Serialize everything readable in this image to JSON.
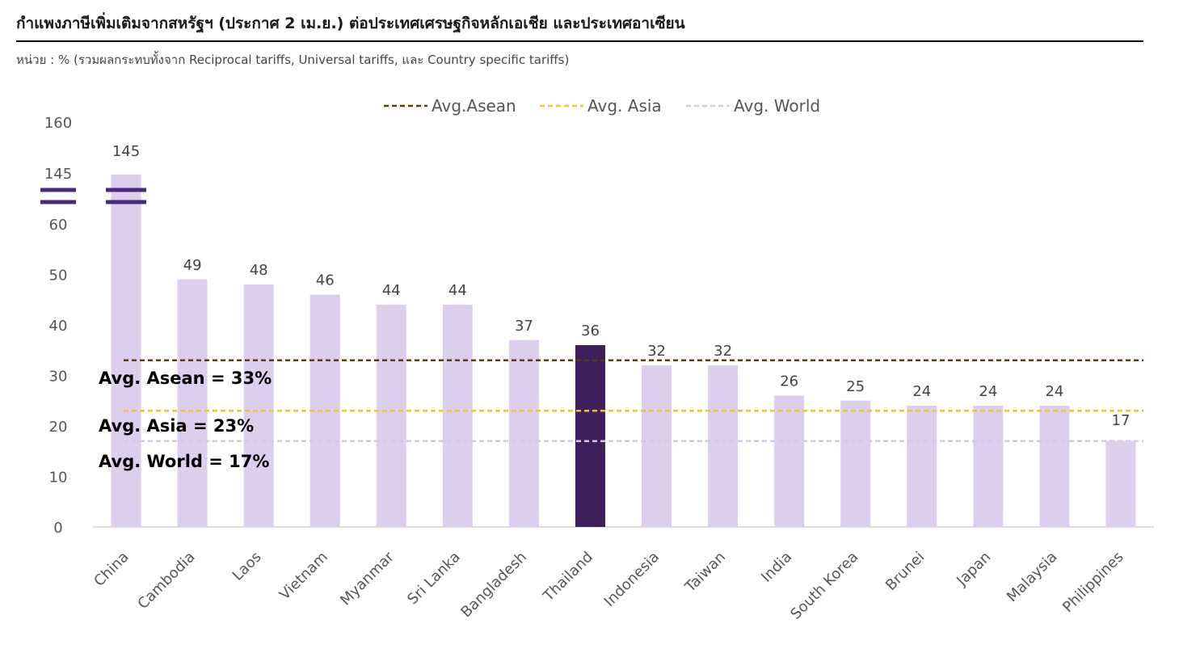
{
  "title": "กำแพงภาษีเพิ่มเติมจากสหรัฐฯ (ประกาศ 2 เม.ย.) ต่อประเทศเศรษฐกิจหลักเอเชีย และประเทศอาเซียน",
  "subtitle": "หน่วย : % (รวมผลกระทบทั้งจาก Reciprocal tariffs, Universal tariffs, และ Country specific tariffs)",
  "chart_data": {
    "type": "bar",
    "categories": [
      "China",
      "Cambodia",
      "Laos",
      "Vietnam",
      "Myanmar",
      "Sri Lanka",
      "Bangladesh",
      "Thailand",
      "Indonesia",
      "Taiwan",
      "India",
      "South Korea",
      "Brunei",
      "Japan",
      "Malaysia",
      "Philippines"
    ],
    "values": [
      145,
      49,
      48,
      46,
      44,
      44,
      37,
      36,
      32,
      32,
      26,
      25,
      24,
      24,
      24,
      17
    ],
    "ytick_labels": [
      "0",
      "10",
      "20",
      "30",
      "40",
      "50",
      "60",
      "145",
      "160"
    ],
    "axis_break": {
      "from": 60,
      "to": 145
    },
    "highlight": {
      "category": "Thailand",
      "color": "#3d1f5c"
    },
    "bar_color": "#dccfed",
    "reference_lines": [
      {
        "name": "Avg.Asean",
        "value": 33,
        "color": "#5c3d08",
        "annotation": "Avg. Asean = 33%"
      },
      {
        "name": "Avg. Asia",
        "value": 23,
        "color": "#f5c033",
        "annotation": "Avg. Asia = 23%"
      },
      {
        "name": "Avg. World",
        "value": 17,
        "color": "#d4c9e3",
        "annotation": "Avg. World = 17%"
      }
    ],
    "break_marker_color": "#4a2a7a",
    "legend_position": "top"
  }
}
